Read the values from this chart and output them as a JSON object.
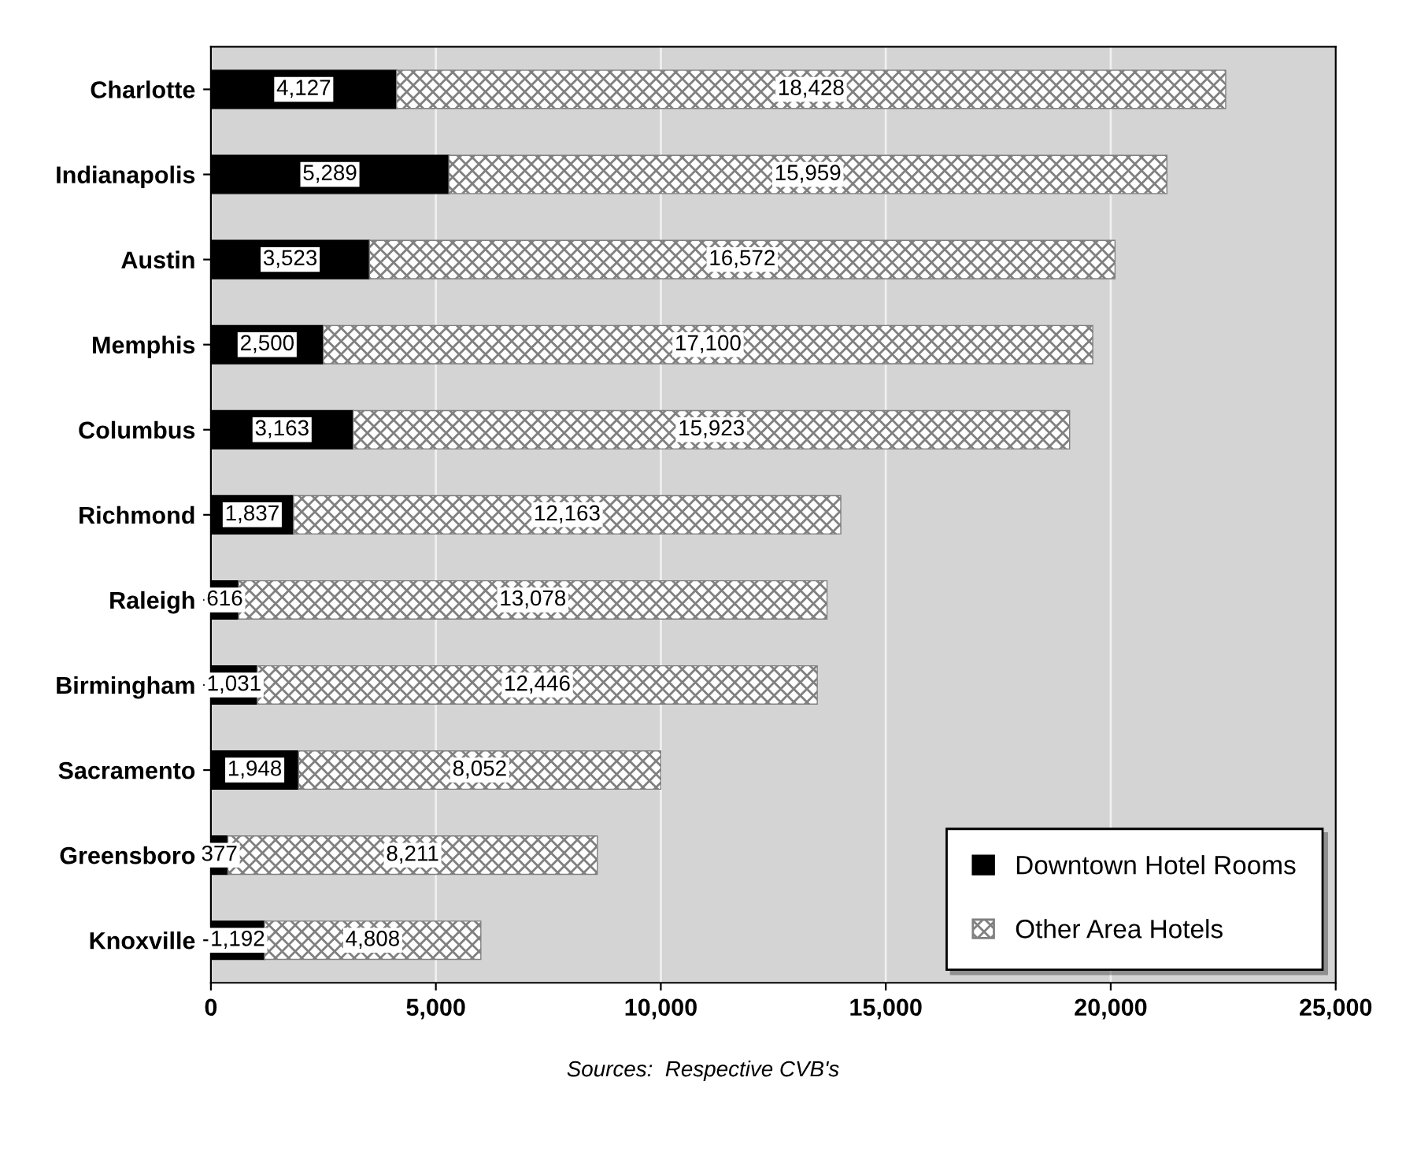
{
  "chart_data": {
    "type": "bar",
    "orientation": "horizontal",
    "stacked": true,
    "categories": [
      "Charlotte",
      "Indianapolis",
      "Austin",
      "Memphis",
      "Columbus",
      "Richmond",
      "Raleigh",
      "Birmingham",
      "Sacramento",
      "Greensboro",
      "Knoxville"
    ],
    "series": [
      {
        "name": "Downtown Hotel Rooms",
        "color": "#000000",
        "values": [
          4127,
          5289,
          3523,
          2500,
          3163,
          1837,
          616,
          1031,
          1948,
          377,
          1192
        ],
        "value_labels": [
          "4,127",
          "5,289",
          "3,523",
          "2,500",
          "3,163",
          "1,837",
          "616",
          "1,031",
          "1,948",
          "377",
          "1,192"
        ]
      },
      {
        "name": "Other Area Hotels",
        "color": "#808080",
        "values": [
          18428,
          15959,
          16572,
          17100,
          15923,
          12163,
          13078,
          12446,
          8052,
          8211,
          4808
        ],
        "value_labels": [
          "18,428",
          "15,959",
          "16,572",
          "17,100",
          "15,923",
          "12,163",
          "13,078",
          "12,446",
          "8,052",
          "8,211",
          "4,808"
        ]
      }
    ],
    "xlim": [
      0,
      25000
    ],
    "xticks": [
      {
        "value": 0,
        "label": "0"
      },
      {
        "value": 5000,
        "label": "5,000"
      },
      {
        "value": 10000,
        "label": "10,000"
      },
      {
        "value": 15000,
        "label": "15,000"
      },
      {
        "value": 20000,
        "label": "20,000"
      },
      {
        "value": 25000,
        "label": "25,000"
      }
    ],
    "grid": "x",
    "legend": "lower right",
    "annotations": [
      "Sources:  Respective CVB's"
    ]
  }
}
